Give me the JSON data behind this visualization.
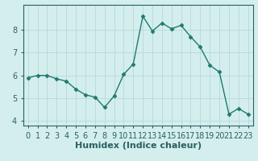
{
  "x": [
    0,
    1,
    2,
    3,
    4,
    5,
    6,
    7,
    8,
    9,
    10,
    11,
    12,
    13,
    14,
    15,
    16,
    17,
    18,
    19,
    20,
    21,
    22,
    23
  ],
  "y": [
    5.9,
    6.0,
    6.0,
    5.85,
    5.75,
    5.4,
    5.15,
    5.05,
    4.6,
    5.1,
    6.05,
    6.5,
    8.6,
    7.95,
    8.3,
    8.05,
    8.2,
    7.7,
    7.25,
    6.45,
    6.15,
    4.3,
    4.55,
    4.3
  ],
  "xlabel": "Humidex (Indice chaleur)",
  "xlim": [
    -0.5,
    23.5
  ],
  "ylim": [
    3.8,
    9.1
  ],
  "yticks": [
    4,
    5,
    6,
    7,
    8
  ],
  "xticks": [
    0,
    1,
    2,
    3,
    4,
    5,
    6,
    7,
    8,
    9,
    10,
    11,
    12,
    13,
    14,
    15,
    16,
    17,
    18,
    19,
    20,
    21,
    22,
    23
  ],
  "line_color": "#1e7a6e",
  "marker": "D",
  "marker_size": 2.5,
  "bg_color": "#d4eeee",
  "grid_color": "#b8d8d8",
  "xlabel_fontsize": 8,
  "tick_fontsize": 7,
  "spine_color": "#2a6060"
}
